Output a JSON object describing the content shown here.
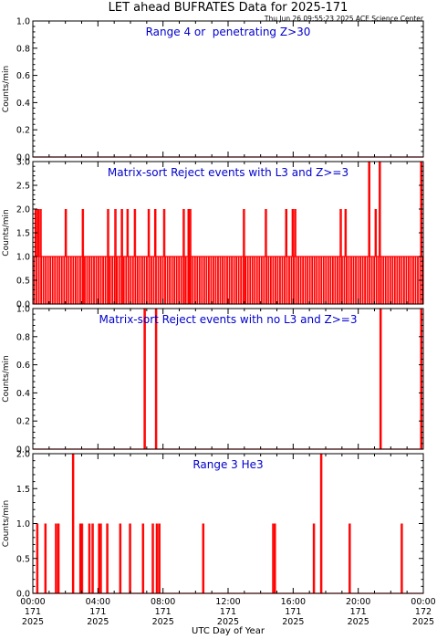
{
  "header": {
    "title": "LET ahead BUFRATES Data for 2025-171",
    "timestamp": "Thu Jun 26 09:55:23 2025 ACE Science Center"
  },
  "x_axis": {
    "label": "UTC Day of Year",
    "ticks": [
      {
        "hour": 0,
        "time": "00:00",
        "doy": "171",
        "year": "2025"
      },
      {
        "hour": 4,
        "time": "04:00",
        "doy": "171",
        "year": "2025"
      },
      {
        "hour": 8,
        "time": "08:00",
        "doy": "171",
        "year": "2025"
      },
      {
        "hour": 12,
        "time": "12:00",
        "doy": "171",
        "year": "2025"
      },
      {
        "hour": 16,
        "time": "16:00",
        "doy": "171",
        "year": "2025"
      },
      {
        "hour": 20,
        "time": "20:00",
        "doy": "171",
        "year": "2025"
      },
      {
        "hour": 24,
        "time": "00:00",
        "doy": "172",
        "year": "2025"
      }
    ]
  },
  "colors": {
    "data": "#ff0000",
    "annotation": "#0000cc",
    "axes": "#000000"
  },
  "chart_data": [
    {
      "type": "line",
      "title": "Range 4 or  penetrating Z>30",
      "ylabel": "Counts/min",
      "ylim": [
        0,
        1.0
      ],
      "yticks": [
        "0.0",
        "0.2",
        "0.4",
        "0.6",
        "0.8",
        "1.0"
      ],
      "xlim": [
        0,
        24
      ],
      "spikes": []
    },
    {
      "type": "line",
      "title": "Matrix-sort Reject events with L3 and Z>=3",
      "ylabel": "Counts/min",
      "ylim": [
        0,
        3.0
      ],
      "yticks": [
        "0.0",
        "0.5",
        "1.0",
        "1.5",
        "2.0",
        "2.5",
        "3.0"
      ],
      "xlim": [
        0,
        24
      ],
      "baseline_level": 1,
      "baseline_toggles": 170,
      "spikes": [
        [
          0.15,
          2
        ],
        [
          0.3,
          2
        ],
        [
          0.45,
          2
        ],
        [
          2.0,
          2
        ],
        [
          3.05,
          2
        ],
        [
          4.6,
          2
        ],
        [
          5.05,
          2
        ],
        [
          5.45,
          2
        ],
        [
          5.8,
          2
        ],
        [
          6.25,
          2
        ],
        [
          7.1,
          2
        ],
        [
          7.5,
          2
        ],
        [
          8.05,
          2
        ],
        [
          9.25,
          2
        ],
        [
          9.55,
          2
        ],
        [
          9.65,
          2
        ],
        [
          12.95,
          2
        ],
        [
          14.3,
          2
        ],
        [
          15.55,
          2
        ],
        [
          15.95,
          2
        ],
        [
          16.1,
          2
        ],
        [
          18.9,
          2
        ],
        [
          19.2,
          2
        ],
        [
          20.65,
          3
        ],
        [
          21.05,
          2
        ],
        [
          21.3,
          3
        ],
        [
          23.85,
          3
        ]
      ]
    },
    {
      "type": "line",
      "title": "Matrix-sort Reject events with no L3 and Z>=3",
      "ylabel": "Counts/min",
      "ylim": [
        0,
        1.0
      ],
      "yticks": [
        "0.0",
        "0.2",
        "0.4",
        "0.6",
        "0.8",
        "1.0"
      ],
      "xlim": [
        0,
        24
      ],
      "spikes": [
        [
          6.85,
          1
        ],
        [
          7.55,
          1
        ],
        [
          21.35,
          1
        ],
        [
          23.85,
          1
        ]
      ]
    },
    {
      "type": "line",
      "title": "Range 3 He3",
      "ylabel": "Counts/min",
      "ylim": [
        0,
        2.0
      ],
      "yticks": [
        "0.0",
        "0.5",
        "1.0",
        "1.5",
        "2.0"
      ],
      "xlim": [
        0,
        24
      ],
      "spikes": [
        [
          0.25,
          1
        ],
        [
          0.75,
          1
        ],
        [
          1.4,
          1
        ],
        [
          1.55,
          1
        ],
        [
          2.45,
          2
        ],
        [
          2.9,
          1
        ],
        [
          3.0,
          1
        ],
        [
          3.45,
          1
        ],
        [
          3.65,
          1
        ],
        [
          4.05,
          1
        ],
        [
          4.15,
          1
        ],
        [
          4.55,
          1
        ],
        [
          5.35,
          1
        ],
        [
          5.95,
          1
        ],
        [
          6.75,
          1
        ],
        [
          7.35,
          1
        ],
        [
          7.6,
          1
        ],
        [
          7.75,
          1
        ],
        [
          10.45,
          1
        ],
        [
          14.75,
          1
        ],
        [
          14.85,
          1
        ],
        [
          17.25,
          1
        ],
        [
          17.7,
          2
        ],
        [
          19.45,
          1
        ],
        [
          22.65,
          1
        ]
      ]
    }
  ]
}
